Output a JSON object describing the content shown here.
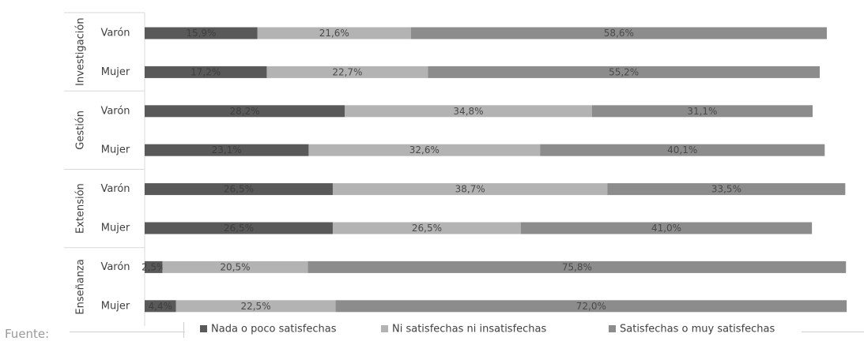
{
  "chart_data": {
    "type": "bar",
    "orientation": "horizontal",
    "stacked": true,
    "percent_stacked": true,
    "xlim": [
      0,
      100
    ],
    "grid": false,
    "legend_position": "bottom",
    "groups": [
      {
        "label": "Investigación",
        "rows": [
          "Varón",
          "Mujer"
        ]
      },
      {
        "label": "Gestión",
        "rows": [
          "Varón",
          "Mujer"
        ]
      },
      {
        "label": "Extensión",
        "rows": [
          "Varón",
          "Mujer"
        ]
      },
      {
        "label": "Enseñanza",
        "rows": [
          "Varón",
          "Mujer"
        ]
      }
    ],
    "categories": [
      "Investigación · Varón",
      "Investigación · Mujer",
      "Gestión · Varón",
      "Gestión · Mujer",
      "Extensión · Varón",
      "Extensión · Mujer",
      "Enseñanza · Varón",
      "Enseñanza · Mujer"
    ],
    "series": [
      {
        "name": "Nada o poco satisfechas",
        "color": "#595959",
        "values": [
          15.9,
          17.2,
          28.2,
          23.1,
          26.5,
          26.5,
          2.5,
          4.4
        ],
        "labels": [
          "15,9%",
          "17,2%",
          "28,2%",
          "23,1%",
          "26,5%",
          "26,5%",
          "2,5%",
          "4,4%"
        ]
      },
      {
        "name": "Ni satisfechas ni insatisfechas",
        "color": "#b3b3b3",
        "values": [
          21.6,
          22.7,
          34.8,
          32.6,
          38.7,
          26.5,
          20.5,
          22.5
        ],
        "labels": [
          "21,6%",
          "22,7%",
          "34,8%",
          "32,6%",
          "38,7%",
          "26,5%",
          "20,5%",
          "22,5%"
        ]
      },
      {
        "name": "Satisfechas o muy satisfechas",
        "color": "#8c8c8c",
        "values": [
          58.6,
          55.2,
          31.1,
          40.1,
          33.5,
          41.0,
          75.8,
          72.0
        ],
        "labels": [
          "58,6%",
          "55,2%",
          "31,1%",
          "40,1%",
          "33,5%",
          "41,0%",
          "75,8%",
          "72,0%"
        ]
      }
    ]
  },
  "footer": {
    "fuente": "Fuente:"
  }
}
